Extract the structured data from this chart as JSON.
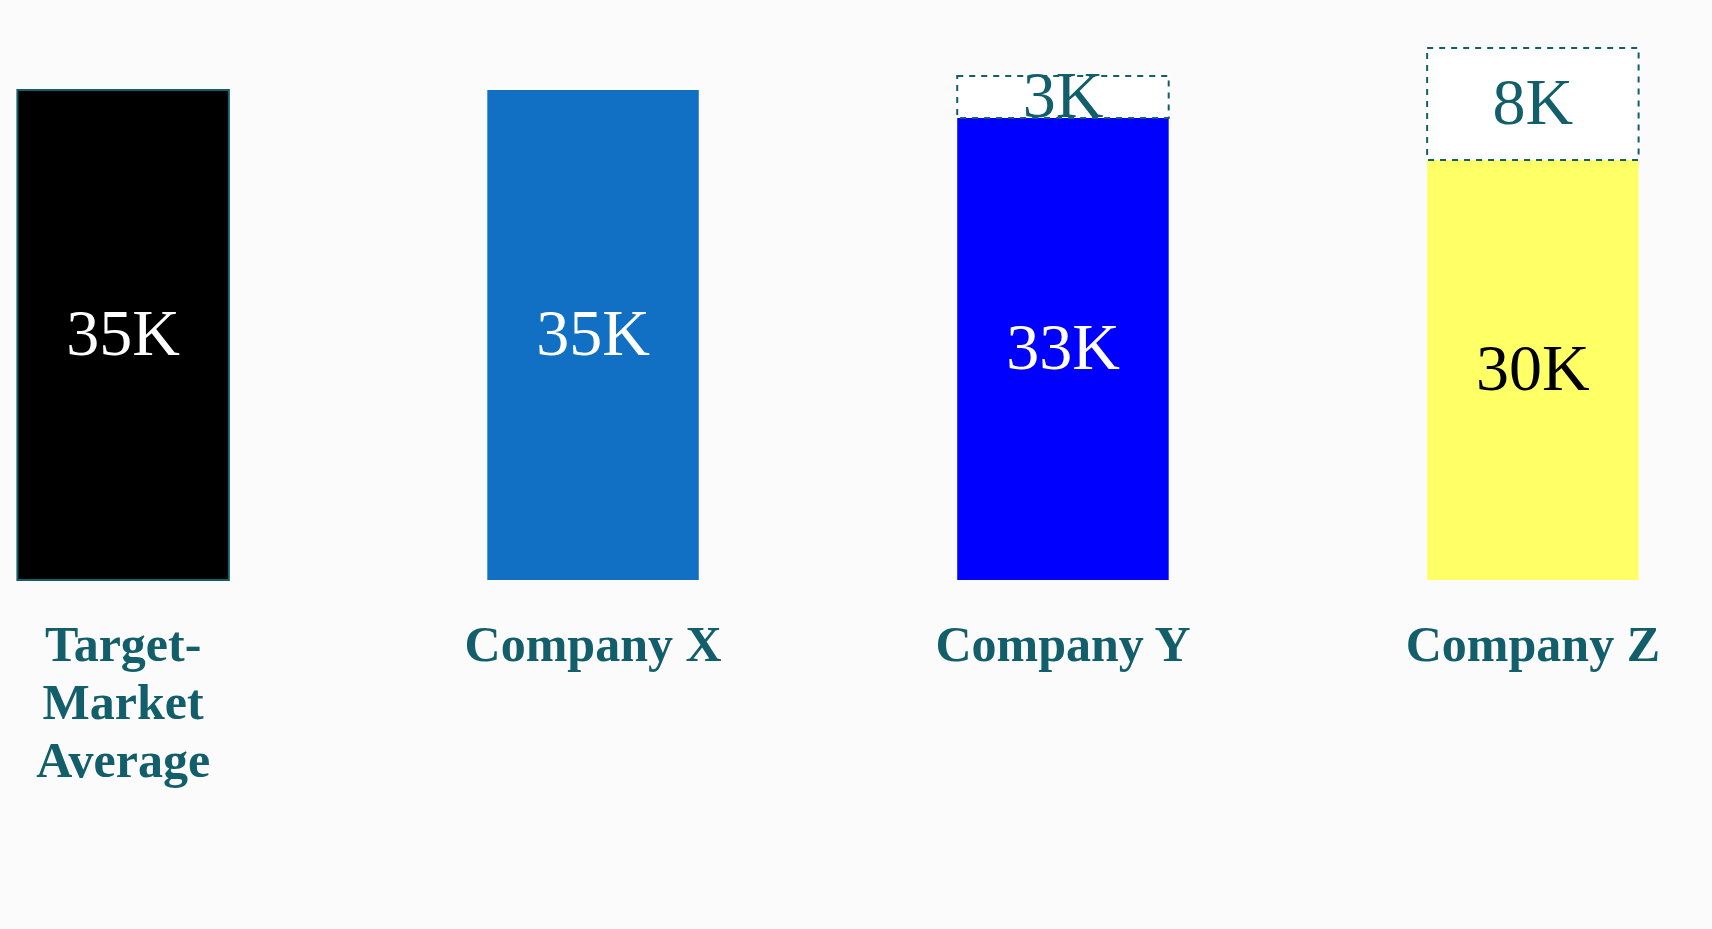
{
  "chart_data": {
    "type": "bar",
    "stacked": true,
    "categories": [
      "Target-Market Average",
      "Company X",
      "Company Y",
      "Company Z"
    ],
    "tick_labels": "x",
    "data_labels": true,
    "series": [
      {
        "colors": [
          "#000000",
          "#1170c4",
          "#0000ff",
          "#ffff66"
        ],
        "values": [
          35,
          35,
          33,
          30
        ],
        "value_labels": [
          "35K",
          "35K",
          "33K",
          "30K"
        ]
      },
      {
        "color": "#ffffff",
        "line_style": "dashed",
        "values": [
          null,
          null,
          3,
          8
        ],
        "value_labels": [
          null,
          null,
          "3K",
          "8K"
        ]
      }
    ]
  }
}
